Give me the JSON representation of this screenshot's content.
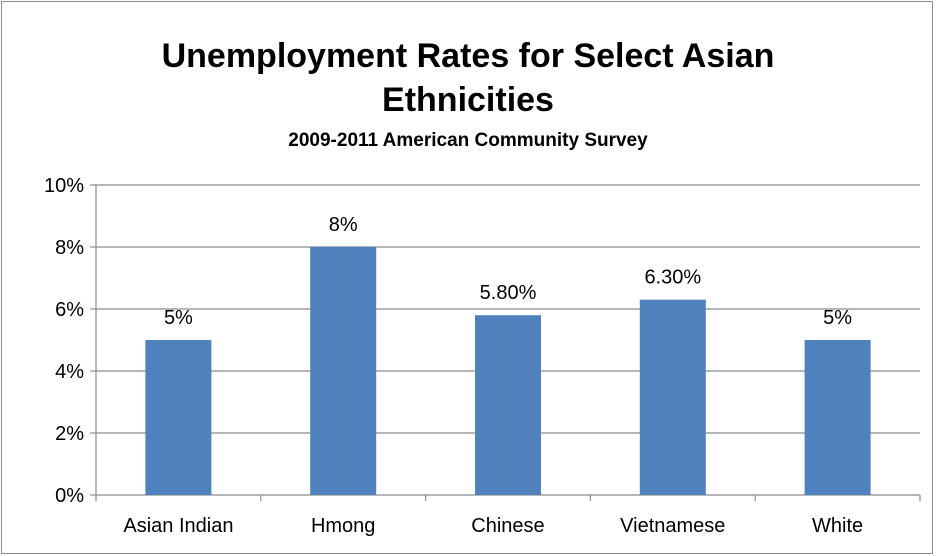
{
  "chart_data": {
    "type": "bar",
    "title": "Unemployment Rates for Select Asian Ethnicities",
    "title_lines": [
      "Unemployment Rates for Select Asian",
      "Ethnicities"
    ],
    "subtitle": "2009-2011 American Community Survey",
    "categories": [
      "Asian Indian",
      "Hmong",
      "Chinese",
      "Vietnamese",
      "White"
    ],
    "values": [
      5,
      8,
      5.8,
      6.3,
      5
    ],
    "data_labels": [
      "5%",
      "8%",
      "5.80%",
      "6.30%",
      "5%"
    ],
    "ylim": [
      0,
      10
    ],
    "y_ticks": [
      "0%",
      "2%",
      "4%",
      "6%",
      "8%",
      "10%"
    ],
    "y_tick_values": [
      0,
      2,
      4,
      6,
      8,
      10
    ],
    "xlabel": "",
    "ylabel": "",
    "grid": true,
    "legend": "none",
    "bar_color": "#4f81bd",
    "grid_color": "#8c8c8c"
  }
}
